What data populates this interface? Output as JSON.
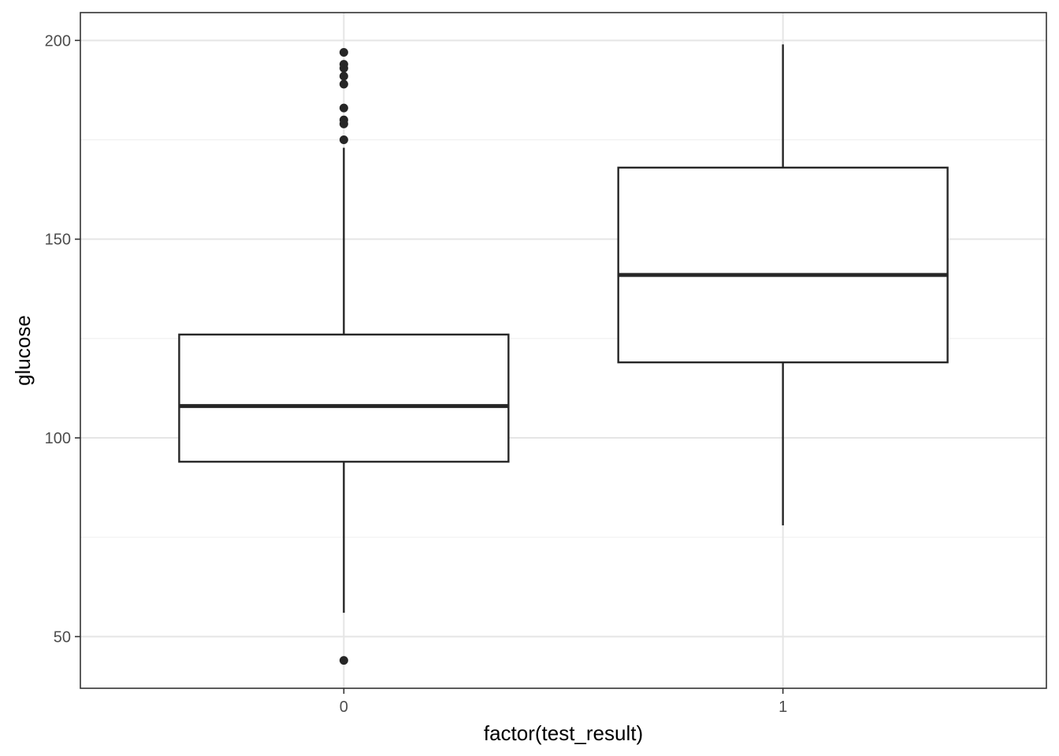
{
  "chart_data": {
    "type": "boxplot",
    "xlabel": "factor(test_result)",
    "ylabel": "glucose",
    "categories": [
      "0",
      "1"
    ],
    "ylim": [
      37,
      207
    ],
    "y_ticks": [
      50,
      100,
      150,
      200
    ],
    "y_minor_ticks": [
      75,
      125,
      175
    ],
    "grid": true,
    "boxes": [
      {
        "category": "0",
        "whisker_low": 56,
        "q1": 94,
        "median": 108,
        "q3": 126,
        "whisker_high": 173,
        "outliers": [
          44,
          175,
          179,
          180,
          183,
          189,
          191,
          193,
          194,
          197
        ]
      },
      {
        "category": "1",
        "whisker_low": 78,
        "q1": 119,
        "median": 141,
        "q3": 168,
        "whisker_high": 199,
        "outliers": []
      }
    ],
    "colors": {
      "box_line": "#262626",
      "grid_major": "#e5e5e5",
      "grid_minor": "#f0f0f0",
      "panel_border": "#333333",
      "tick_text": "#4d4d4d",
      "point": "#262626"
    }
  }
}
